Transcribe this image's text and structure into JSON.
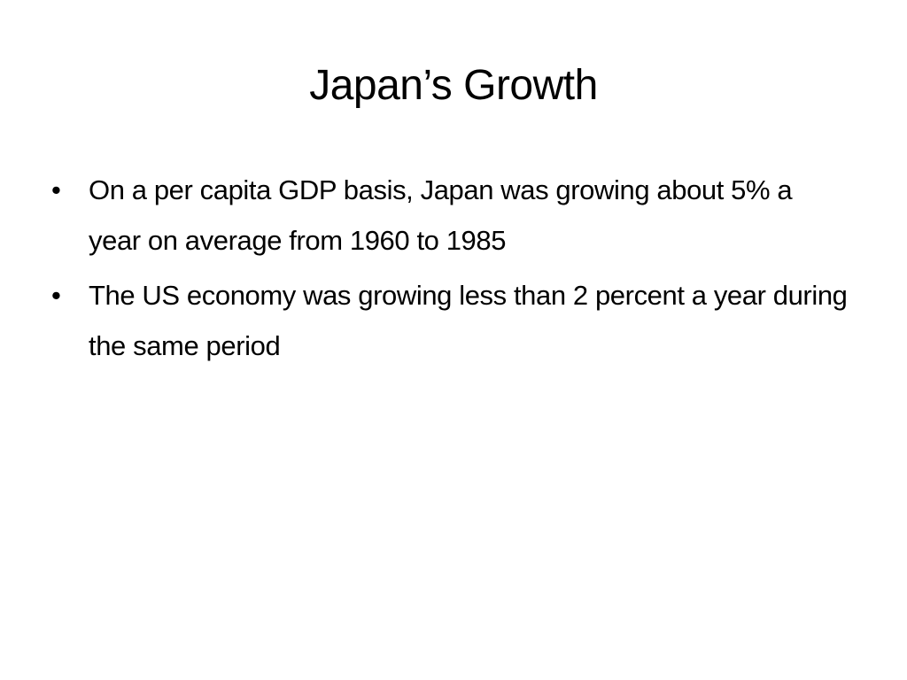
{
  "slide": {
    "title": "Japan’s Growth",
    "bullets": [
      {
        "marker": "•",
        "text": "On a per capita GDP basis, Japan was growing about 5% a year on average from 1960 to 1985"
      },
      {
        "marker": "•",
        "text": "The US economy was growing less than 2 percent a year during the same period"
      }
    ]
  },
  "colors": {
    "background": "#ffffff",
    "text": "#000000"
  }
}
